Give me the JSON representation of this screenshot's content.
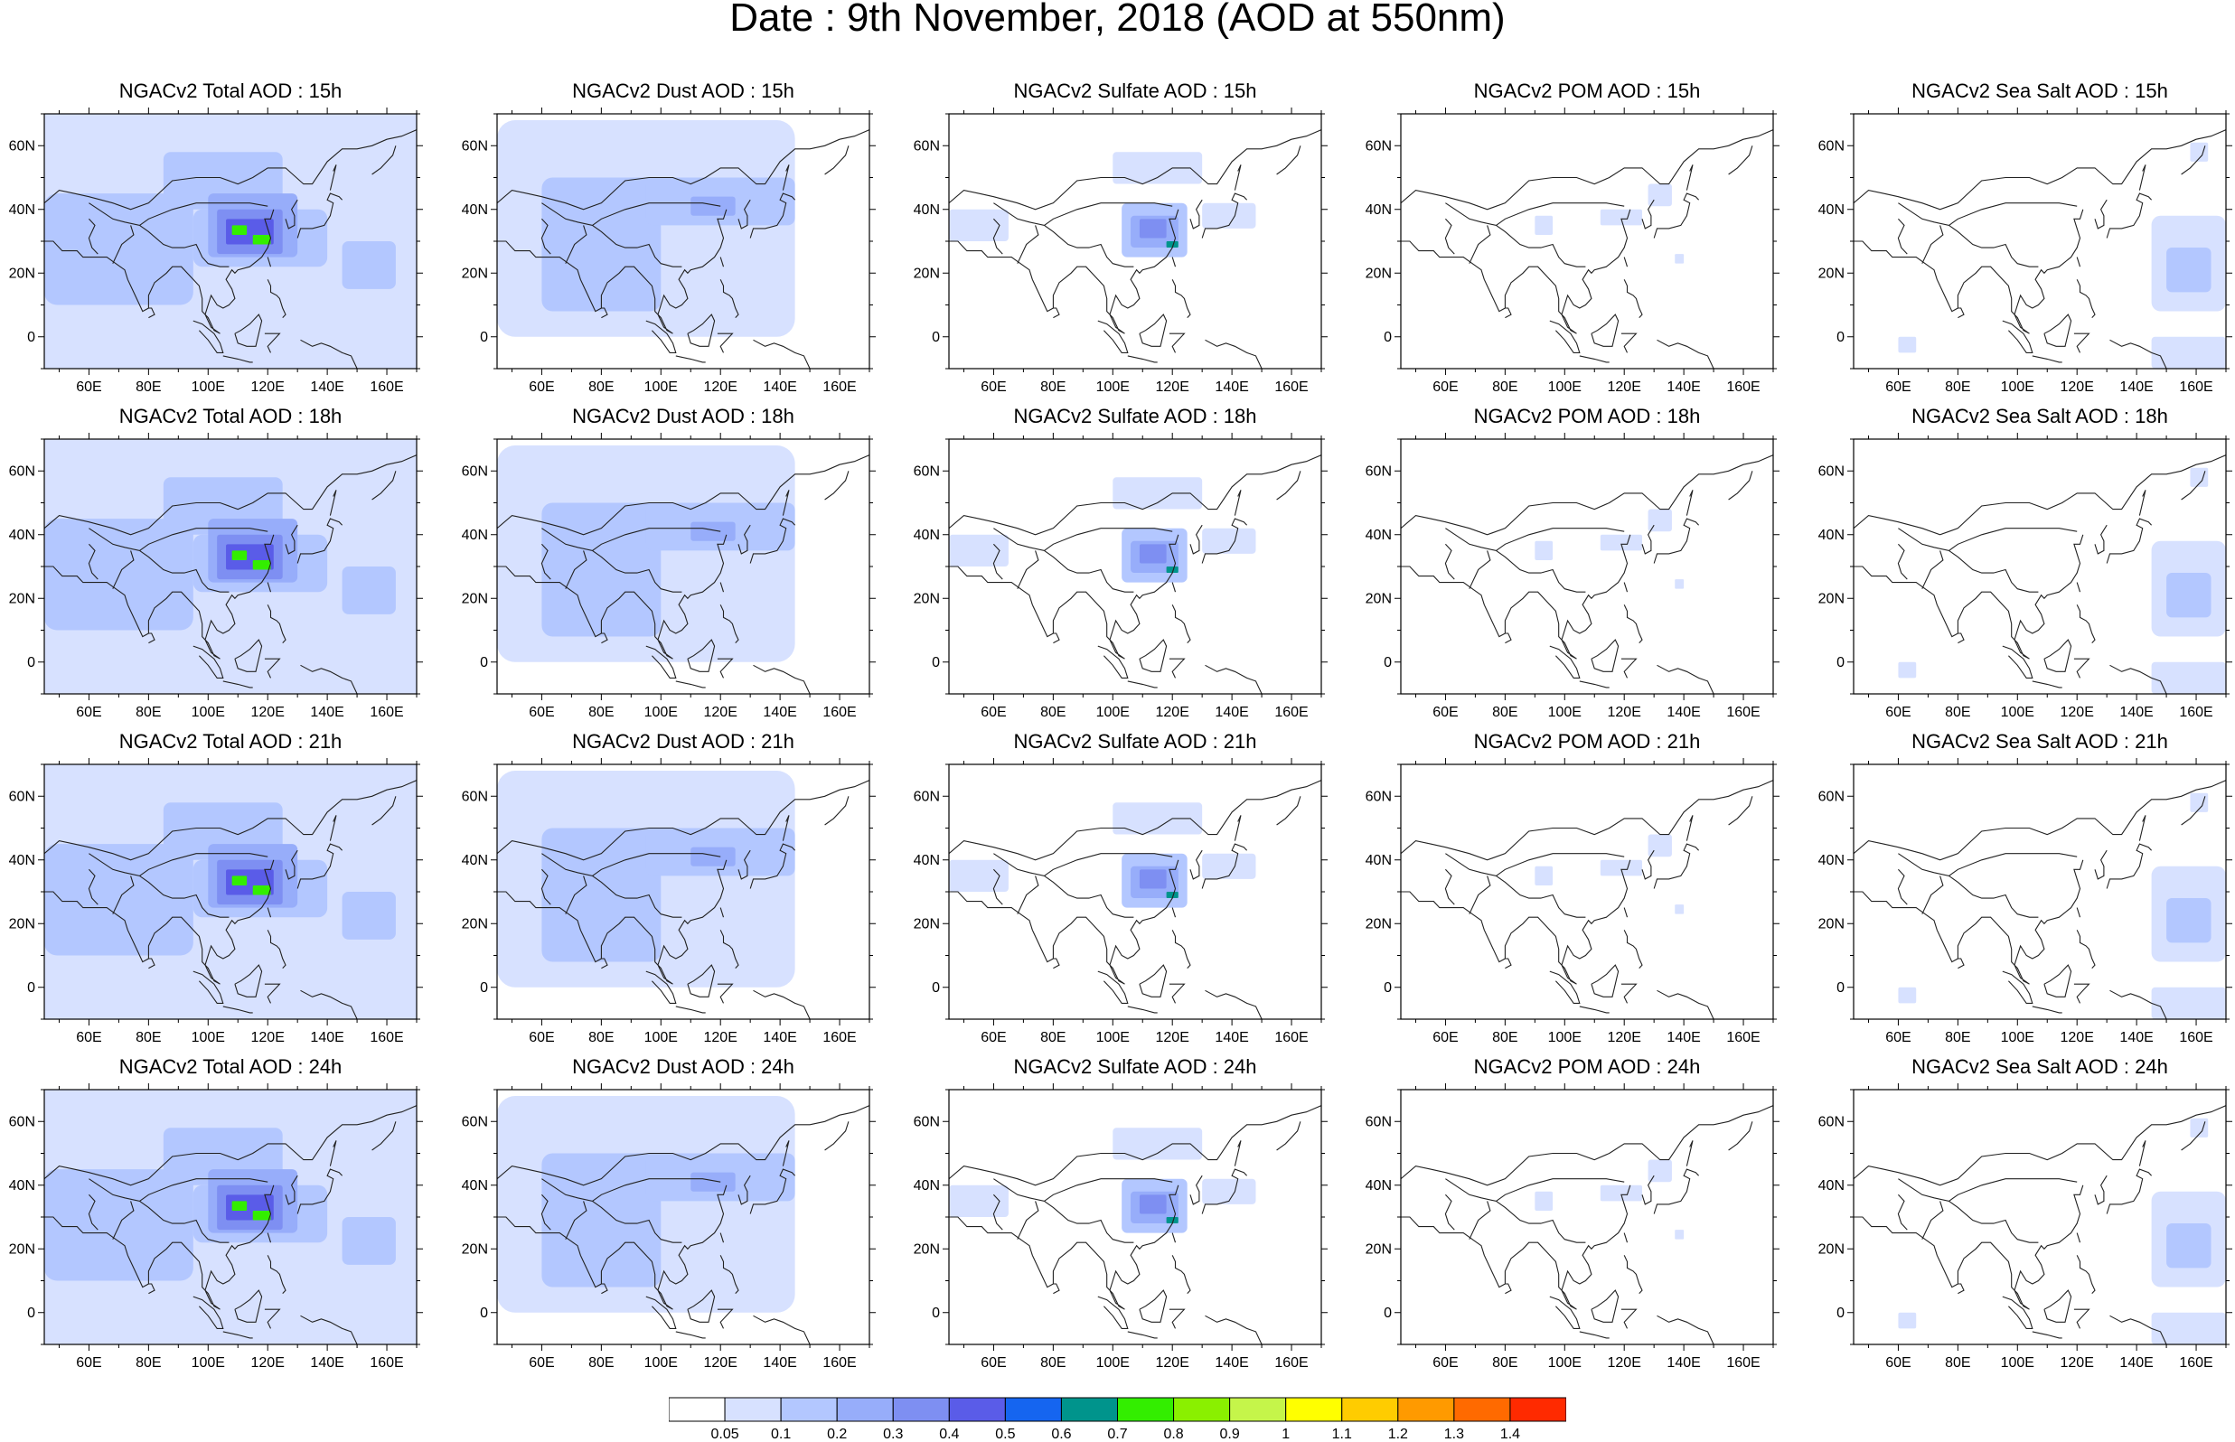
{
  "title": "Date : 9th November, 2018 (AOD at 550nm)",
  "lat_labels": [
    "60N",
    "40N",
    "20N",
    "0"
  ],
  "lon_labels": [
    "60E",
    "80E",
    "100E",
    "120E",
    "140E",
    "160E"
  ],
  "panels": [
    {
      "title": "NGACv2 Total AOD : 15h",
      "species": "total"
    },
    {
      "title": "NGACv2 Dust AOD : 15h",
      "species": "dust"
    },
    {
      "title": "NGACv2 Sulfate AOD : 15h",
      "species": "sulfate"
    },
    {
      "title": "NGACv2 POM AOD : 15h",
      "species": "pom"
    },
    {
      "title": "NGACv2 Sea Salt AOD : 15h",
      "species": "seasalt"
    },
    {
      "title": "NGACv2 Total AOD : 18h",
      "species": "total"
    },
    {
      "title": "NGACv2 Dust AOD : 18h",
      "species": "dust"
    },
    {
      "title": "NGACv2 Sulfate AOD : 18h",
      "species": "sulfate"
    },
    {
      "title": "NGACv2 POM AOD : 18h",
      "species": "pom"
    },
    {
      "title": "NGACv2 Sea Salt AOD : 18h",
      "species": "seasalt"
    },
    {
      "title": "NGACv2 Total AOD : 21h",
      "species": "total"
    },
    {
      "title": "NGACv2 Dust AOD : 21h",
      "species": "dust"
    },
    {
      "title": "NGACv2 Sulfate AOD : 21h",
      "species": "sulfate"
    },
    {
      "title": "NGACv2 POM AOD : 21h",
      "species": "pom"
    },
    {
      "title": "NGACv2 Sea Salt AOD : 21h",
      "species": "seasalt"
    },
    {
      "title": "NGACv2 Total AOD : 24h",
      "species": "total"
    },
    {
      "title": "NGACv2 Dust AOD : 24h",
      "species": "dust"
    },
    {
      "title": "NGACv2 Sulfate AOD : 24h",
      "species": "sulfate"
    },
    {
      "title": "NGACv2 POM AOD : 24h",
      "species": "pom"
    },
    {
      "title": "NGACv2 Sea Salt  AOD : 24h",
      "species": "seasalt"
    }
  ],
  "colorbar": {
    "labels": [
      "0.05",
      "0.1",
      "0.2",
      "0.3",
      "0.4",
      "0.5",
      "0.6",
      "0.7",
      "0.8",
      "0.9",
      "1",
      "1.1",
      "1.2",
      "1.3",
      "1.4"
    ],
    "colors": [
      "#ffffff",
      "#d7e1ff",
      "#b3c7ff",
      "#97adfa",
      "#7e8ff2",
      "#5a5ce8",
      "#1565f0",
      "#00948c",
      "#33ee00",
      "#8af000",
      "#c5f54a",
      "#ffff00",
      "#ffcc00",
      "#ff9a00",
      "#ff6a00",
      "#ff2a00"
    ]
  }
}
